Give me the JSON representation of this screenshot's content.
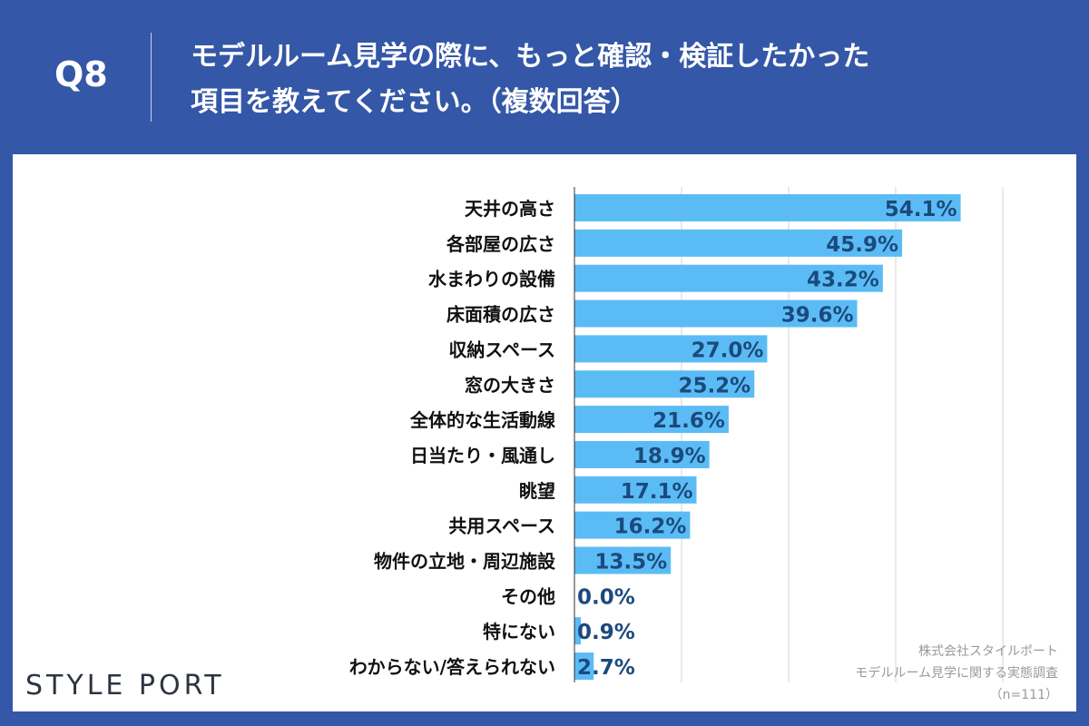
{
  "header": {
    "question": "Q8",
    "title_line1": "モデルルーム見学の際に、もっと確認・検証したかった",
    "title_line2": "項目を教えてください。（複数回答）"
  },
  "logo": "STYLE PORT",
  "source": {
    "company": "株式会社スタイルポート",
    "survey": "モデルルーム見学に関する実態調査",
    "n": "（n=111）"
  },
  "colors": {
    "background": "#3457a7",
    "bar": "#5bbcf5",
    "value_label": "#1b4a7c"
  },
  "chart_data": {
    "type": "bar",
    "orientation": "horizontal",
    "xlim": [
      0,
      60
    ],
    "grid": true,
    "unit": "%",
    "categories": [
      "天井の高さ",
      "各部屋の広さ",
      "水まわりの設備",
      "床面積の広さ",
      "収納スペース",
      "窓の大きさ",
      "全体的な生活動線",
      "日当たり・風通し",
      "眺望",
      "共用スペース",
      "物件の立地・周辺施設",
      "その他",
      "特にない",
      "わからない/答えられない"
    ],
    "values": [
      54.1,
      45.9,
      43.2,
      39.6,
      27.0,
      25.2,
      21.6,
      18.9,
      17.1,
      16.2,
      13.5,
      0.0,
      0.9,
      2.7
    ],
    "labels": [
      "54.1%",
      "45.9%",
      "43.2%",
      "39.6%",
      "27.0%",
      "25.2%",
      "21.6%",
      "18.9%",
      "17.1%",
      "16.2%",
      "13.5%",
      "0.0%",
      "0.9%",
      "2.7%"
    ]
  }
}
